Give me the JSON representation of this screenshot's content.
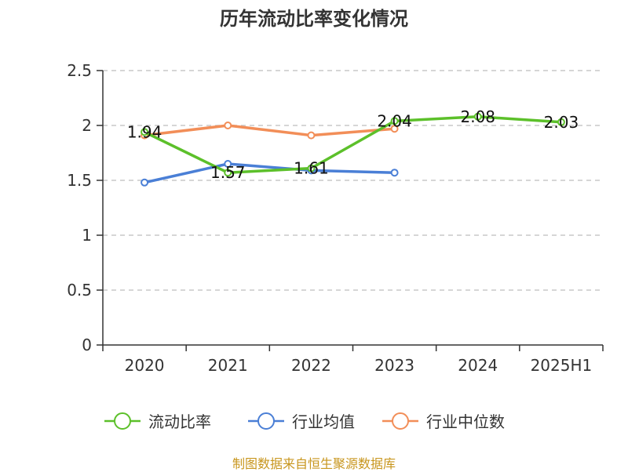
{
  "chart_data": {
    "type": "line",
    "title": "历年流动比率变化情况",
    "categories": [
      "2020",
      "2021",
      "2022",
      "2023",
      "2024",
      "2025H1"
    ],
    "ylim": [
      0,
      2.5
    ],
    "yticks": [
      "0",
      "0.5",
      "1",
      "1.5",
      "2",
      "2.5"
    ],
    "grid": true,
    "legend_position": "bottom",
    "series": [
      {
        "name": "流动比率",
        "color": "#5cc02a",
        "values": [
          1.94,
          1.57,
          1.61,
          2.04,
          2.08,
          2.03
        ],
        "labels": [
          "1.94",
          "1.57",
          "1.61",
          "2.04",
          "2.08",
          "2.03"
        ]
      },
      {
        "name": "行业均值",
        "color": "#4a7fd6",
        "values": [
          1.48,
          1.65,
          1.59,
          1.57,
          null,
          null
        ]
      },
      {
        "name": "行业中位数",
        "color": "#f28e58",
        "values": [
          1.91,
          2.0,
          1.91,
          1.97,
          null,
          null
        ]
      }
    ]
  },
  "source": {
    "text": "制图数据来自恒生聚源数据库",
    "color": "#c8961e"
  }
}
